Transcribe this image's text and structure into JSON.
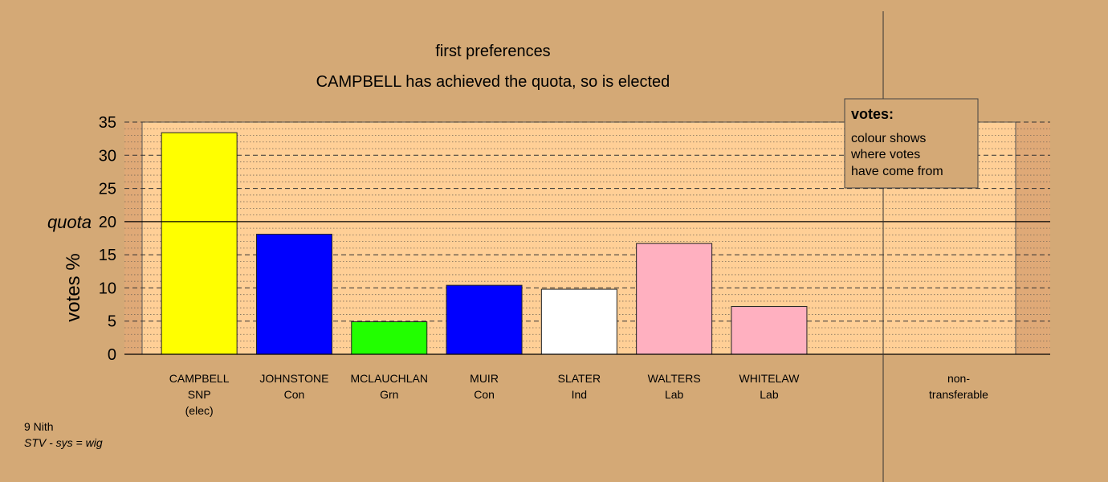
{
  "chart_data": {
    "type": "bar",
    "title": "first preferences",
    "subtitle": "CAMPBELL has achieved the quota, so is elected",
    "ylabel": "votes %",
    "ylim": [
      0,
      35
    ],
    "yticks": [
      0,
      5,
      10,
      15,
      20,
      25,
      30,
      35
    ],
    "grid": true,
    "quota": {
      "label": "quota",
      "value": 20
    },
    "categories": [
      {
        "name": "CAMPBELL",
        "party": "SNP",
        "note": "(elec)",
        "value": 33.4,
        "color": "#ffff00"
      },
      {
        "name": "JOHNSTONE",
        "party": "Con",
        "note": "",
        "value": 18.1,
        "color": "#0000ff"
      },
      {
        "name": "MCLAUCHLAN",
        "party": "Grn",
        "note": "",
        "value": 4.9,
        "color": "#22ff00"
      },
      {
        "name": "MUIR",
        "party": "Con",
        "note": "",
        "value": 10.4,
        "color": "#0000ff"
      },
      {
        "name": "SLATER",
        "party": "Ind",
        "note": "",
        "value": 9.8,
        "color": "#ffffff"
      },
      {
        "name": "WALTERS",
        "party": "Lab",
        "note": "",
        "value": 16.7,
        "color": "#ffb0c0"
      },
      {
        "name": "WHITELAW",
        "party": "Lab",
        "note": "",
        "value": 7.2,
        "color": "#ffb0c0"
      }
    ],
    "nontransferable": {
      "line1": "non-",
      "line2": "transferable",
      "value": 0
    },
    "legend": {
      "position": "top-right",
      "title": "votes:",
      "lines": [
        "colour shows",
        "where votes",
        "have come from"
      ]
    },
    "footer": {
      "ward": "9 Nith",
      "system": "STV - sys = wig"
    },
    "colors": {
      "background": "#d4a976",
      "plot_band": "#ffcf96",
      "outer_band": "#dfa977",
      "legend_fill": "#d4a976"
    }
  }
}
